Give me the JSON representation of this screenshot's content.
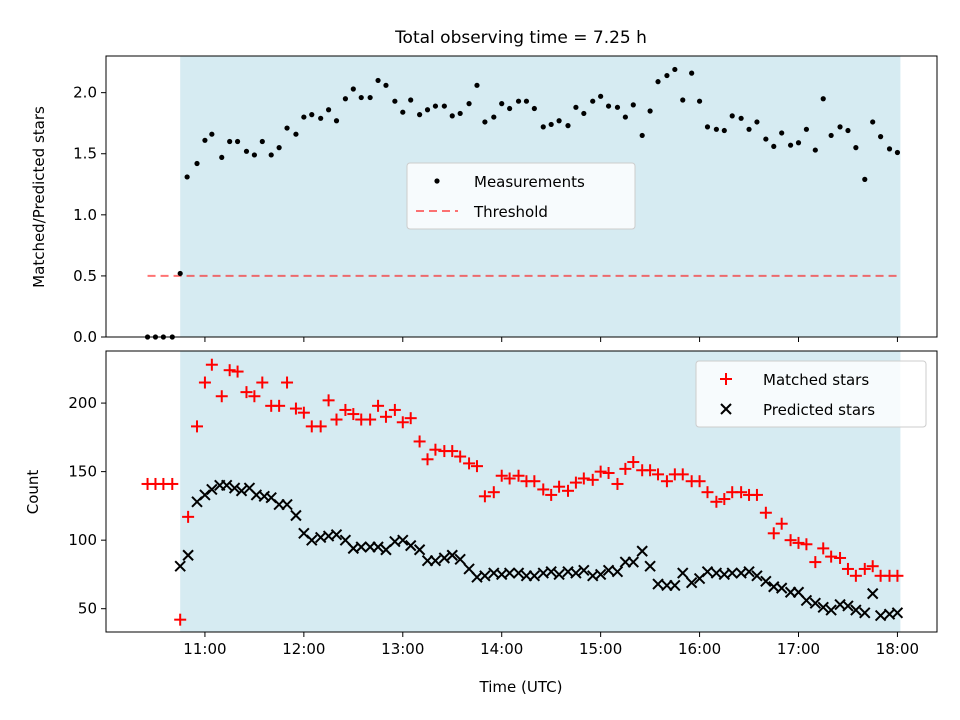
{
  "chart_data": {
    "title": "Total observing time = 7.25 h",
    "xlabel": "Time (UTC)",
    "xlim": [
      10.0,
      18.4
    ],
    "xticks": [
      11,
      12,
      13,
      14,
      15,
      16,
      17,
      18
    ],
    "xtick_labels": [
      "11:00",
      "12:00",
      "13:00",
      "14:00",
      "15:00",
      "16:00",
      "17:00",
      "18:00"
    ],
    "observing_window": [
      10.75,
      18.03
    ],
    "colors": {
      "window": "#add8e6",
      "matched": "#ff0000",
      "predicted": "#000000",
      "threshold": "#ff0000",
      "measurement": "#000000"
    },
    "panels": [
      {
        "type": "scatter",
        "ylabel": "Matched/Predicted stars",
        "ylim": [
          0,
          2.3
        ],
        "yticks": [
          0.0,
          0.5,
          1.0,
          1.5,
          2.0
        ],
        "ytick_labels": [
          "0.0",
          "0.5",
          "1.0",
          "1.5",
          "2.0"
        ],
        "legend": {
          "position": "center",
          "entries": [
            "Measurements",
            "Threshold"
          ]
        },
        "threshold": {
          "name": "Threshold",
          "y": 0.5,
          "x_range": [
            10.42,
            18.03
          ]
        },
        "series": [
          {
            "name": "Measurements",
            "x": [
              10.42,
              10.5,
              10.58,
              10.67,
              10.75,
              10.82,
              10.92,
              11.0,
              11.07,
              11.17,
              11.25,
              11.33,
              11.42,
              11.5,
              11.58,
              11.67,
              11.75,
              11.83,
              11.92,
              12.0,
              12.08,
              12.17,
              12.25,
              12.33,
              12.42,
              12.5,
              12.58,
              12.67,
              12.75,
              12.83,
              12.92,
              13.0,
              13.08,
              13.17,
              13.25,
              13.33,
              13.42,
              13.5,
              13.58,
              13.67,
              13.75,
              13.83,
              13.92,
              14.0,
              14.08,
              14.17,
              14.25,
              14.33,
              14.42,
              14.5,
              14.58,
              14.67,
              14.75,
              14.83,
              14.92,
              15.0,
              15.08,
              15.17,
              15.25,
              15.33,
              15.42,
              15.5,
              15.58,
              15.67,
              15.75,
              15.83,
              15.92,
              16.0,
              16.08,
              16.17,
              16.25,
              16.33,
              16.42,
              16.5,
              16.58,
              16.67,
              16.75,
              16.83,
              16.92,
              17.0,
              17.08,
              17.17,
              17.25,
              17.33,
              17.42,
              17.5,
              17.58,
              17.67,
              17.75,
              17.83,
              17.92,
              18.0
            ],
            "y": [
              0.0,
              0.0,
              0.0,
              0.0,
              0.52,
              1.31,
              1.42,
              1.61,
              1.66,
              1.47,
              1.6,
              1.6,
              1.52,
              1.49,
              1.6,
              1.49,
              1.55,
              1.71,
              1.66,
              1.8,
              1.82,
              1.79,
              1.86,
              1.77,
              1.95,
              2.03,
              1.96,
              1.96,
              2.1,
              2.06,
              1.93,
              1.84,
              1.94,
              1.82,
              1.86,
              1.89,
              1.89,
              1.81,
              1.83,
              1.91,
              2.06,
              1.76,
              1.8,
              1.91,
              1.87,
              1.93,
              1.93,
              1.87,
              1.72,
              1.74,
              1.77,
              1.73,
              1.88,
              1.83,
              1.93,
              1.97,
              1.89,
              1.88,
              1.8,
              1.9,
              1.65,
              1.85,
              2.09,
              2.14,
              2.19,
              1.94,
              2.16,
              1.93,
              1.72,
              1.7,
              1.69,
              1.81,
              1.79,
              1.7,
              1.76,
              1.62,
              1.56,
              1.67,
              1.57,
              1.59,
              1.7,
              1.53,
              1.95,
              1.65,
              1.72,
              1.69,
              1.55,
              1.29,
              1.76,
              1.64,
              1.54,
              1.51
            ]
          }
        ]
      },
      {
        "type": "scatter",
        "ylabel": "Count",
        "ylim": [
          33,
          238
        ],
        "yticks": [
          50,
          100,
          150,
          200
        ],
        "ytick_labels": [
          "50",
          "100",
          "150",
          "200"
        ],
        "legend": {
          "position": "top-right",
          "entries": [
            "Matched stars",
            "Predicted stars"
          ]
        },
        "series": [
          {
            "name": "Matched stars",
            "marker": "plus",
            "x": [
              10.42,
              10.5,
              10.58,
              10.67,
              10.75,
              10.83,
              10.92,
              11.0,
              11.07,
              11.17,
              11.25,
              11.33,
              11.42,
              11.5,
              11.58,
              11.67,
              11.75,
              11.83,
              11.92,
              12.0,
              12.08,
              12.17,
              12.25,
              12.33,
              12.42,
              12.5,
              12.58,
              12.67,
              12.75,
              12.83,
              12.92,
              13.0,
              13.08,
              13.17,
              13.25,
              13.33,
              13.42,
              13.5,
              13.58,
              13.67,
              13.75,
              13.83,
              13.92,
              14.0,
              14.08,
              14.17,
              14.25,
              14.33,
              14.42,
              14.5,
              14.58,
              14.67,
              14.75,
              14.83,
              14.92,
              15.0,
              15.08,
              15.17,
              15.25,
              15.33,
              15.42,
              15.5,
              15.58,
              15.67,
              15.75,
              15.83,
              15.92,
              16.0,
              16.08,
              16.17,
              16.25,
              16.33,
              16.42,
              16.5,
              16.58,
              16.67,
              16.75,
              16.83,
              16.92,
              17.0,
              17.08,
              17.17,
              17.25,
              17.33,
              17.42,
              17.5,
              17.58,
              17.67,
              17.75,
              17.83,
              17.92,
              18.0
            ],
            "y": [
              141,
              141,
              141,
              141,
              42,
              117,
              183,
              215,
              228,
              205,
              224,
              223,
              208,
              205,
              215,
              198,
              198,
              215,
              196,
              193,
              183,
              183,
              202,
              188,
              195,
              192,
              188,
              188,
              198,
              190,
              195,
              186,
              189,
              172,
              159,
              166,
              165,
              165,
              161,
              156,
              154,
              132,
              135,
              147,
              145,
              147,
              143,
              143,
              137,
              133,
              139,
              136,
              142,
              145,
              144,
              150,
              149,
              141,
              152,
              157,
              151,
              151,
              148,
              143,
              148,
              148,
              143,
              143,
              135,
              128,
              130,
              135,
              135,
              133,
              133,
              120,
              105,
              112,
              100,
              98,
              97,
              84,
              94,
              88,
              87,
              79,
              74,
              79,
              81,
              74,
              74,
              74
            ]
          },
          {
            "name": "Predicted stars",
            "marker": "x",
            "x": [
              10.75,
              10.83,
              10.92,
              11.0,
              11.07,
              11.15,
              11.22,
              11.3,
              11.37,
              11.45,
              11.52,
              11.6,
              11.67,
              11.75,
              11.83,
              11.92,
              12.0,
              12.08,
              12.17,
              12.25,
              12.33,
              12.42,
              12.5,
              12.58,
              12.67,
              12.75,
              12.83,
              12.92,
              13.0,
              13.08,
              13.17,
              13.25,
              13.33,
              13.42,
              13.5,
              13.58,
              13.67,
              13.75,
              13.83,
              13.92,
              14.0,
              14.08,
              14.17,
              14.25,
              14.33,
              14.42,
              14.5,
              14.58,
              14.67,
              14.75,
              14.83,
              14.92,
              15.0,
              15.08,
              15.17,
              15.25,
              15.33,
              15.42,
              15.5,
              15.58,
              15.67,
              15.75,
              15.83,
              15.92,
              16.0,
              16.08,
              16.17,
              16.25,
              16.33,
              16.42,
              16.5,
              16.58,
              16.67,
              16.75,
              16.83,
              16.92,
              17.0,
              17.08,
              17.17,
              17.25,
              17.33,
              17.42,
              17.5,
              17.58,
              17.67,
              17.75,
              17.83,
              17.92,
              18.0
            ],
            "y": [
              81,
              89,
              128,
              133,
              137,
              140,
              140,
              138,
              136,
              138,
              133,
              132,
              131,
              126,
              126,
              118,
              105,
              100,
              102,
              103,
              104,
              100,
              94,
              95,
              95,
              95,
              93,
              99,
              100,
              96,
              93,
              85,
              85,
              87,
              89,
              86,
              79,
              73,
              74,
              76,
              75,
              76,
              76,
              74,
              74,
              76,
              77,
              75,
              77,
              76,
              78,
              74,
              75,
              78,
              77,
              84,
              84,
              92,
              81,
              68,
              67,
              67,
              76,
              69,
              72,
              77,
              76,
              75,
              76,
              76,
              77,
              74,
              70,
              66,
              65,
              62,
              62,
              56,
              54,
              51,
              49,
              53,
              52,
              49,
              47,
              61,
              45,
              46,
              47
            ]
          }
        ]
      }
    ]
  }
}
